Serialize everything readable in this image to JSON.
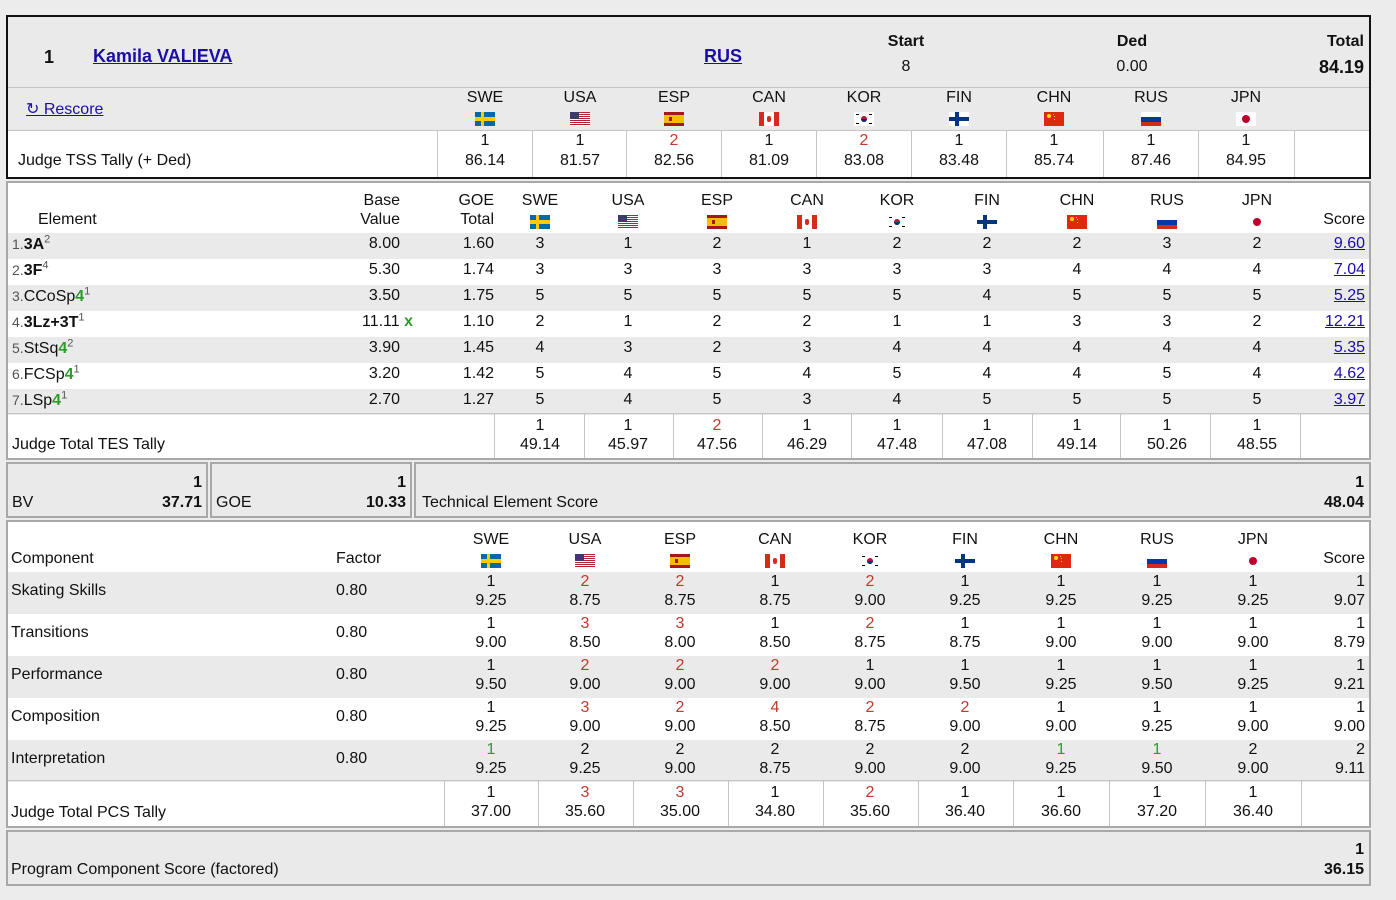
{
  "skater": {
    "rank": "1",
    "name": "Kamila VALIEVA",
    "nation": "RUS",
    "start_label": "Start",
    "start": "8",
    "ded_label": "Ded",
    "ded": "0.00",
    "total_label": "Total",
    "total": "84.19"
  },
  "rescore_label": "↻ Rescore",
  "judges": [
    {
      "code": "SWE",
      "flag": "swe"
    },
    {
      "code": "USA",
      "flag": "usa"
    },
    {
      "code": "ESP",
      "flag": "esp"
    },
    {
      "code": "CAN",
      "flag": "can"
    },
    {
      "code": "KOR",
      "flag": "kor"
    },
    {
      "code": "FIN",
      "flag": "fin"
    },
    {
      "code": "CHN",
      "flag": "chn"
    },
    {
      "code": "RUS",
      "flag": "rus"
    },
    {
      "code": "JPN",
      "flag": "jpn"
    }
  ],
  "tss_tally": {
    "label": "Judge TSS Tally (+ Ded)",
    "ranks": [
      "1",
      "1",
      "2",
      "1",
      "2",
      "1",
      "1",
      "1",
      "1"
    ],
    "rank_colors": [
      "",
      "",
      "red",
      "",
      "red",
      "",
      "",
      "",
      ""
    ],
    "values": [
      "86.14",
      "81.57",
      "82.56",
      "81.09",
      "83.08",
      "83.48",
      "85.74",
      "87.46",
      "84.95"
    ]
  },
  "elements": {
    "headers": {
      "element": "Element",
      "base1": "Base",
      "base2": "Value",
      "goe1": "GOE",
      "goe2": "Total",
      "score": "Score"
    },
    "rows": [
      {
        "num": "1.",
        "name": "3A",
        "bold": true,
        "level": "",
        "sup": "2",
        "bv": "8.00",
        "bonus": "",
        "goe": "1.60",
        "marks": [
          "3",
          "1",
          "2",
          "1",
          "2",
          "2",
          "2",
          "3",
          "2"
        ],
        "score": "9.60"
      },
      {
        "num": "2.",
        "name": "3F",
        "bold": true,
        "level": "",
        "sup": "4",
        "bv": "5.30",
        "bonus": "",
        "goe": "1.74",
        "marks": [
          "3",
          "3",
          "3",
          "3",
          "3",
          "3",
          "4",
          "4",
          "4"
        ],
        "score": "7.04"
      },
      {
        "num": "3.",
        "name": "CCoSp",
        "bold": false,
        "level": "4",
        "sup": "1",
        "bv": "3.50",
        "bonus": "",
        "goe": "1.75",
        "marks": [
          "5",
          "5",
          "5",
          "5",
          "5",
          "4",
          "5",
          "5",
          "5"
        ],
        "score": "5.25"
      },
      {
        "num": "4.",
        "name": "3Lz+3T",
        "bold": true,
        "level": "",
        "sup": "1",
        "bv": "11.11",
        "bonus": "x",
        "goe": "1.10",
        "marks": [
          "2",
          "1",
          "2",
          "2",
          "1",
          "1",
          "3",
          "3",
          "2"
        ],
        "score": "12.21"
      },
      {
        "num": "5.",
        "name": "StSq",
        "bold": false,
        "level": "4",
        "sup": "2",
        "bv": "3.90",
        "bonus": "",
        "goe": "1.45",
        "marks": [
          "4",
          "3",
          "2",
          "3",
          "4",
          "4",
          "4",
          "4",
          "4"
        ],
        "score": "5.35"
      },
      {
        "num": "6.",
        "name": "FCSp",
        "bold": false,
        "level": "4",
        "sup": "1",
        "bv": "3.20",
        "bonus": "",
        "goe": "1.42",
        "marks": [
          "5",
          "4",
          "5",
          "4",
          "5",
          "4",
          "4",
          "5",
          "4"
        ],
        "score": "4.62"
      },
      {
        "num": "7.",
        "name": "LSp",
        "bold": false,
        "level": "4",
        "sup": "1",
        "bv": "2.70",
        "bonus": "",
        "goe": "1.27",
        "marks": [
          "5",
          "4",
          "5",
          "3",
          "4",
          "5",
          "5",
          "5",
          "5"
        ],
        "score": "3.97"
      }
    ]
  },
  "tes_tally": {
    "label": "Judge Total TES Tally",
    "ranks": [
      "1",
      "1",
      "2",
      "1",
      "1",
      "1",
      "1",
      "1",
      "1"
    ],
    "rank_colors": [
      "",
      "",
      "red",
      "",
      "",
      "",
      "",
      "",
      ""
    ],
    "values": [
      "49.14",
      "45.97",
      "47.56",
      "46.29",
      "47.48",
      "47.08",
      "49.14",
      "50.26",
      "48.55"
    ]
  },
  "summary": {
    "bv_label": "BV",
    "bv_rank": "1",
    "bv": "37.71",
    "goe_label": "GOE",
    "goe_rank": "1",
    "goe": "10.33",
    "tes_label": "Technical Element Score",
    "tes_rank": "1",
    "tes": "48.04"
  },
  "components": {
    "headers": {
      "component": "Component",
      "factor": "Factor",
      "score": "Score"
    },
    "rows": [
      {
        "name": "Skating Skills",
        "factor": "0.80",
        "ranks": [
          "1",
          "2",
          "2",
          "1",
          "2",
          "1",
          "1",
          "1",
          "1"
        ],
        "rank_colors": [
          "",
          "red",
          "red",
          "",
          "red",
          "",
          "",
          "",
          ""
        ],
        "marks": [
          "9.25",
          "8.75",
          "8.75",
          "8.75",
          "9.00",
          "9.25",
          "9.25",
          "9.25",
          "9.25"
        ],
        "score_rank": "1",
        "score": "9.07"
      },
      {
        "name": "Transitions",
        "factor": "0.80",
        "ranks": [
          "1",
          "3",
          "3",
          "1",
          "2",
          "1",
          "1",
          "1",
          "1"
        ],
        "rank_colors": [
          "",
          "red",
          "red",
          "",
          "red",
          "",
          "",
          "",
          ""
        ],
        "marks": [
          "9.00",
          "8.50",
          "8.00",
          "8.50",
          "8.75",
          "8.75",
          "9.00",
          "9.00",
          "9.00"
        ],
        "score_rank": "1",
        "score": "8.79"
      },
      {
        "name": "Performance",
        "factor": "0.80",
        "ranks": [
          "1",
          "2",
          "2",
          "2",
          "1",
          "1",
          "1",
          "1",
          "1"
        ],
        "rank_colors": [
          "",
          "red",
          "red",
          "red",
          "",
          "",
          "",
          "",
          ""
        ],
        "marks": [
          "9.50",
          "9.00",
          "9.00",
          "9.00",
          "9.00",
          "9.50",
          "9.25",
          "9.50",
          "9.25"
        ],
        "score_rank": "1",
        "score": "9.21"
      },
      {
        "name": "Composition",
        "factor": "0.80",
        "ranks": [
          "1",
          "3",
          "2",
          "4",
          "2",
          "2",
          "1",
          "1",
          "1"
        ],
        "rank_colors": [
          "",
          "red",
          "red",
          "red",
          "red",
          "red",
          "",
          "",
          ""
        ],
        "marks": [
          "9.25",
          "9.00",
          "9.00",
          "8.50",
          "8.75",
          "9.00",
          "9.00",
          "9.25",
          "9.00"
        ],
        "score_rank": "1",
        "score": "9.00"
      },
      {
        "name": "Interpretation",
        "factor": "0.80",
        "ranks": [
          "1",
          "2",
          "2",
          "2",
          "2",
          "2",
          "1",
          "1",
          "2"
        ],
        "rank_colors": [
          "grn",
          "",
          "",
          "",
          "",
          "",
          "grn",
          "grn",
          ""
        ],
        "marks": [
          "9.25",
          "9.25",
          "9.00",
          "8.75",
          "9.00",
          "9.00",
          "9.25",
          "9.50",
          "9.00"
        ],
        "score_rank": "2",
        "score": "9.11"
      }
    ]
  },
  "pcs_tally": {
    "label": "Judge Total PCS Tally",
    "ranks": [
      "1",
      "3",
      "3",
      "1",
      "2",
      "1",
      "1",
      "1",
      "1"
    ],
    "rank_colors": [
      "",
      "red",
      "red",
      "",
      "red",
      "",
      "",
      "",
      ""
    ],
    "values": [
      "37.00",
      "35.60",
      "35.00",
      "34.80",
      "35.60",
      "36.40",
      "36.60",
      "37.20",
      "36.40"
    ]
  },
  "pcs_total": {
    "label": "Program Component Score (factored)",
    "rank": "1",
    "value": "36.15"
  },
  "colors": {
    "link": "#1a0dab",
    "red_rank": "#c0392b",
    "green_rank": "#2a9d2a",
    "grey_band": "#eaeaea"
  }
}
